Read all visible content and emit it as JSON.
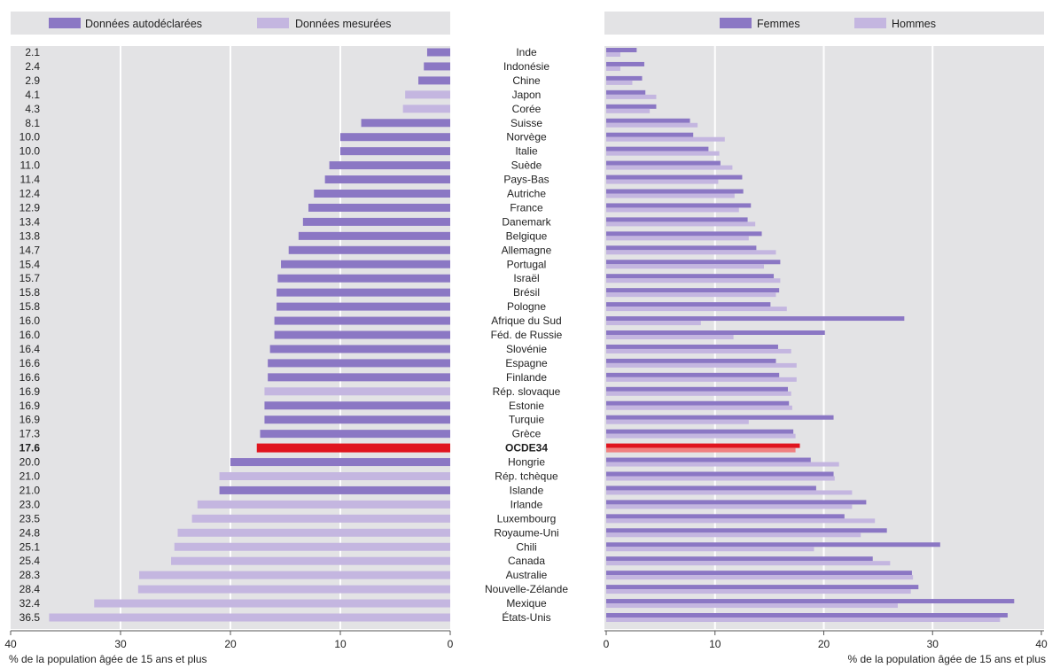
{
  "colors": {
    "self_reported": "#8b77c4",
    "measured": "#c4b6e0",
    "women": "#8b77c4",
    "men": "#c4b6e0",
    "oecd_highlight": "#e0141e",
    "oecd_highlight_light": "#f08080",
    "panel_bg": "#e3e3e5"
  },
  "chart_data": [
    {
      "type": "bar",
      "orientation": "horizontal",
      "direction": "right-to-left",
      "legend": [
        "Données autodéclarées",
        "Données mesurées"
      ],
      "legend_placement": "top",
      "categories": [
        "Inde",
        "Indonésie",
        "Chine",
        "Japon",
        "Corée",
        "Suisse",
        "Norvège",
        "Italie",
        "Suède",
        "Pays-Bas",
        "Autriche",
        "France",
        "Danemark",
        "Belgique",
        "Allemagne",
        "Portugal",
        "Israël",
        "Brésil",
        "Pologne",
        "Afrique du Sud",
        "Féd. de Russie",
        "Slovénie",
        "Espagne",
        "Finlande",
        "Rép. slovaque",
        "Estonie",
        "Turquie",
        "Grèce",
        "OCDE34",
        "Hongrie",
        "Rép. tchèque",
        "Islande",
        "Irlande",
        "Luxembourg",
        "Royaume-Uni",
        "Chili",
        "Canada",
        "Australie",
        "Nouvelle-Zélande",
        "Mexique",
        "États-Unis"
      ],
      "value_labels": [
        "2.1",
        "2.4",
        "2.9",
        "4.1",
        "4.3",
        "8.1",
        "10.0",
        "10.0",
        "11.0",
        "11.4",
        "12.4",
        "12.9",
        "13.4",
        "13.8",
        "14.7",
        "15.4",
        "15.7",
        "15.8",
        "15.8",
        "16.0",
        "16.0",
        "16.4",
        "16.6",
        "16.6",
        "16.9",
        "16.9",
        "16.9",
        "17.3",
        "17.6",
        "20.0",
        "21.0",
        "21.0",
        "23.0",
        "23.5",
        "24.8",
        "25.1",
        "25.4",
        "28.3",
        "28.4",
        "32.4",
        "36.5"
      ],
      "values": [
        2.1,
        2.4,
        2.9,
        4.1,
        4.3,
        8.1,
        10.0,
        10.0,
        11.0,
        11.4,
        12.4,
        12.9,
        13.4,
        13.8,
        14.7,
        15.4,
        15.7,
        15.8,
        15.8,
        16.0,
        16.0,
        16.4,
        16.6,
        16.6,
        16.9,
        16.9,
        16.9,
        17.3,
        17.6,
        20.0,
        21.0,
        21.0,
        23.0,
        23.5,
        24.8,
        25.1,
        25.4,
        28.3,
        28.4,
        32.4,
        36.5
      ],
      "data_type": [
        "self",
        "self",
        "self",
        "measured",
        "measured",
        "self",
        "self",
        "self",
        "self",
        "self",
        "self",
        "self",
        "self",
        "self",
        "self",
        "self",
        "self",
        "self",
        "self",
        "self",
        "self",
        "self",
        "self",
        "self",
        "measured",
        "self",
        "self",
        "self",
        "oecd",
        "self",
        "measured",
        "self",
        "measured",
        "measured",
        "measured",
        "measured",
        "measured",
        "measured",
        "measured",
        "measured",
        "measured"
      ],
      "xlim": [
        40,
        0
      ],
      "xticks": [
        "40",
        "30",
        "20",
        "10",
        "0"
      ],
      "xlabel": "% de la population âgée de 15 ans et plus",
      "grid": true
    },
    {
      "type": "bar",
      "orientation": "horizontal",
      "legend": [
        "Femmes",
        "Hommes"
      ],
      "legend_placement": "top",
      "categories": [
        "Inde",
        "Indonésie",
        "Chine",
        "Japon",
        "Corée",
        "Suisse",
        "Norvège",
        "Italie",
        "Suède",
        "Pays-Bas",
        "Autriche",
        "France",
        "Danemark",
        "Belgique",
        "Allemagne",
        "Portugal",
        "Israël",
        "Brésil",
        "Pologne",
        "Afrique du Sud",
        "Féd. de Russie",
        "Slovénie",
        "Espagne",
        "Finlande",
        "Rép. slovaque",
        "Estonie",
        "Turquie",
        "Grèce",
        "OCDE34",
        "Hongrie",
        "Rép. tchèque",
        "Islande",
        "Irlande",
        "Luxembourg",
        "Royaume-Uni",
        "Chili",
        "Canada",
        "Australie",
        "Nouvelle-Zélande",
        "Mexique",
        "États-Unis"
      ],
      "series": [
        {
          "name": "Femmes",
          "values": [
            2.8,
            3.5,
            3.3,
            3.6,
            4.6,
            7.7,
            8.0,
            9.4,
            10.5,
            12.5,
            12.6,
            13.3,
            13.0,
            14.3,
            13.8,
            16.0,
            15.4,
            15.9,
            15.1,
            27.4,
            20.1,
            15.8,
            15.6,
            15.9,
            16.7,
            16.8,
            20.9,
            17.2,
            17.8,
            18.8,
            20.9,
            19.3,
            23.9,
            21.9,
            25.8,
            30.7,
            24.5,
            28.1,
            28.7,
            37.5,
            36.9
          ]
        },
        {
          "name": "Hommes",
          "values": [
            1.3,
            1.3,
            2.4,
            4.6,
            4.0,
            8.4,
            10.9,
            10.4,
            11.6,
            10.3,
            11.8,
            12.2,
            13.7,
            13.1,
            15.6,
            14.5,
            16.0,
            15.6,
            16.6,
            8.7,
            11.7,
            17.0,
            17.5,
            17.5,
            17.0,
            17.1,
            13.1,
            17.4,
            17.4,
            21.4,
            21.0,
            22.6,
            22.6,
            24.7,
            23.4,
            19.1,
            26.1,
            28.2,
            28.0,
            26.8,
            36.2
          ]
        }
      ],
      "xlim": [
        0,
        40
      ],
      "xticks": [
        "0",
        "10",
        "20",
        "30",
        "40"
      ],
      "xlabel": "% de la population âgée de 15 ans et plus",
      "grid": true
    }
  ]
}
